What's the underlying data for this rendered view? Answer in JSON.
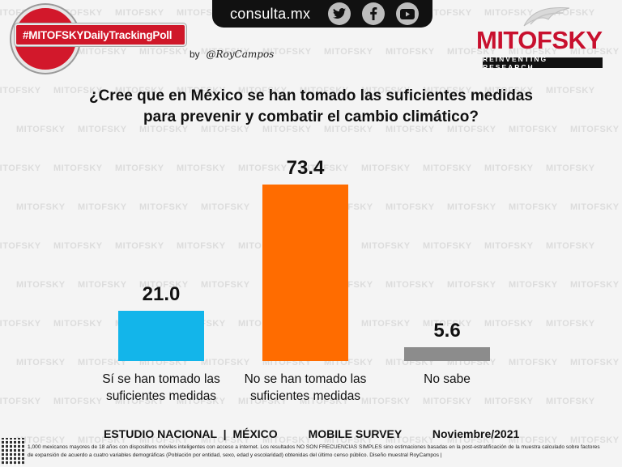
{
  "header": {
    "site": "consulta.mx",
    "social_icons": [
      "twitter-icon",
      "facebook-icon",
      "youtube-icon"
    ],
    "hashtag": "#MITOFSKYDailyTrackingPoll",
    "byline_prefix": "by",
    "byline_author": "@RoyCampos",
    "logo_text": "MITOFSKY",
    "logo_tagline": "REINVENTING RESEARCH",
    "brand_color": "#c8102e"
  },
  "question": {
    "line1": "¿Cree que en México se han tomado las suficientes medidas",
    "line2": "para prevenir y combatir el cambio climático?"
  },
  "chart_data": {
    "type": "bar",
    "title": "¿Cree que en México se han tomado las suficientes medidas para prevenir y combatir el cambio climático?",
    "categories": [
      [
        "Sí se han tomado las",
        "suficientes medidas"
      ],
      [
        "No se han tomado las",
        "suficientes medidas"
      ],
      [
        "No sabe"
      ]
    ],
    "values": [
      21.0,
      73.4,
      5.6
    ],
    "value_labels": [
      "21.0",
      "73.4",
      "5.6"
    ],
    "colors": [
      "#13b5ea",
      "#ff6c00",
      "#8c8c8c"
    ],
    "xlabel": "",
    "ylabel": "",
    "ylim": [
      0,
      100
    ]
  },
  "footer": {
    "study": "ESTUDIO NACIONAL",
    "separator": "|",
    "country": "MÉXICO",
    "mode": "MOBILE SURVEY",
    "date": "Noviembre/2021",
    "note_line1": "1,000 mexicanos mayores de 18 años con dispositivos móviles inteligentes con acceso a internet. Los resultados NO SON FRECUENCIAS SIMPLES sino estimaciones basadas en la post-estratificación de la muestra calculado sobre factores",
    "note_line2": "de expansión de acuerdo a cuatro variables demográficas (Población por entidad, sexo, edad y escolaridad) obtenidas del último censo público. Diseño muestral RoyCampos |"
  }
}
